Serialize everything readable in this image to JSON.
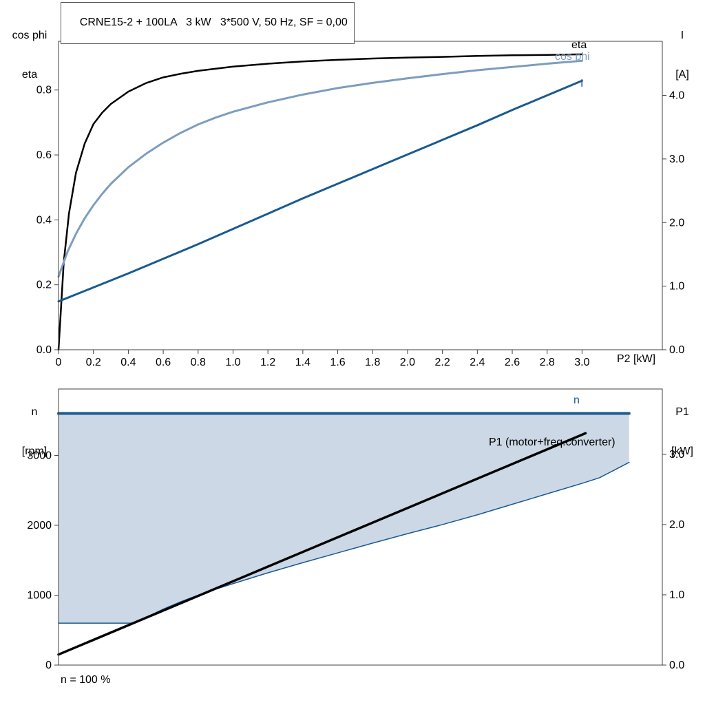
{
  "colors": {
    "black": "#000000",
    "dark_blue": "#1a5a8e",
    "light_blue": "#7d9dbe",
    "area_fill": "#ccd8e5",
    "frame": "#404040",
    "text": "#000000"
  },
  "labels": {
    "title": "CRNE15-2 + 100LA   3 kW   3*500 V, 50 Hz, SF = 0,00",
    "top_left_line1": "cos phi",
    "top_left_line2": "eta",
    "top_right_line1": "I",
    "top_right_line2": "[A]",
    "x_label_top": "P2 [kW]",
    "eta_curve": "eta",
    "cosphi_curve": "cos phi",
    "current_curve": "I",
    "bottom_left_line1": "n",
    "bottom_left_line2": "[rpm]",
    "bottom_right_line1": "P1",
    "bottom_right_line2": "[kW]",
    "n_curve": "n",
    "p1_curve": "P1 (motor+freq.converter)",
    "annotation": "n = 100 %"
  },
  "chart_data": [
    {
      "type": "line",
      "title": "CRNE15-2 + 100LA   3 kW   3*500 V, 50 Hz, SF = 0,00",
      "xlabel": "P2 [kW]",
      "y_left_label": "cos phi / eta",
      "y_right_label": "I [A]",
      "grid": false,
      "legend_position": "inline-right",
      "x_range": [
        0,
        3.46
      ],
      "y_left_range": [
        0,
        0.95
      ],
      "y_right_range": [
        0,
        4.85
      ],
      "x_ticks": {
        "values": [
          0,
          0.2,
          0.4,
          0.6,
          0.8,
          1.0,
          1.2,
          1.4,
          1.6,
          1.8,
          2.0,
          2.2,
          2.4,
          2.6,
          2.8,
          3.0
        ],
        "labels": [
          "0",
          "0.2",
          "0.4",
          "0.6",
          "0.8",
          "1.0",
          "1.2",
          "1.4",
          "1.6",
          "1.8",
          "2.0",
          "2.2",
          "2.4",
          "2.6",
          "2.8",
          "3.0"
        ]
      },
      "y_left_ticks": {
        "values": [
          0,
          0.2,
          0.4,
          0.6,
          0.8
        ],
        "labels": [
          "0.0",
          "0.2",
          "0.4",
          "0.6",
          "0.8"
        ]
      },
      "y_right_ticks": {
        "values": [
          0,
          1,
          2,
          3,
          4
        ],
        "labels": [
          "0.0",
          "1.0",
          "2.0",
          "3.0",
          "4.0"
        ]
      },
      "series": [
        {
          "name": "eta",
          "axis": "left",
          "color": "black",
          "width": 2.5,
          "points": [
            [
              0,
              0
            ],
            [
              0.03,
              0.27
            ],
            [
              0.06,
              0.42
            ],
            [
              0.1,
              0.545
            ],
            [
              0.15,
              0.635
            ],
            [
              0.2,
              0.695
            ],
            [
              0.25,
              0.73
            ],
            [
              0.3,
              0.757
            ],
            [
              0.4,
              0.795
            ],
            [
              0.5,
              0.821
            ],
            [
              0.6,
              0.839
            ],
            [
              0.7,
              0.85
            ],
            [
              0.8,
              0.859
            ],
            [
              1.0,
              0.872
            ],
            [
              1.2,
              0.881
            ],
            [
              1.4,
              0.888
            ],
            [
              1.6,
              0.893
            ],
            [
              1.8,
              0.897
            ],
            [
              2.0,
              0.9
            ],
            [
              2.2,
              0.902
            ],
            [
              2.4,
              0.905
            ],
            [
              2.6,
              0.907
            ],
            [
              2.8,
              0.908
            ],
            [
              3.0,
              0.91
            ]
          ]
        },
        {
          "name": "cos phi",
          "axis": "left",
          "color": "light_blue",
          "width": 3,
          "points": [
            [
              0,
              0.225
            ],
            [
              0.05,
              0.3
            ],
            [
              0.1,
              0.357
            ],
            [
              0.15,
              0.405
            ],
            [
              0.2,
              0.445
            ],
            [
              0.25,
              0.48
            ],
            [
              0.3,
              0.511
            ],
            [
              0.4,
              0.562
            ],
            [
              0.5,
              0.603
            ],
            [
              0.6,
              0.638
            ],
            [
              0.7,
              0.668
            ],
            [
              0.8,
              0.694
            ],
            [
              0.9,
              0.715
            ],
            [
              1.0,
              0.733
            ],
            [
              1.2,
              0.762
            ],
            [
              1.4,
              0.786
            ],
            [
              1.6,
              0.806
            ],
            [
              1.8,
              0.822
            ],
            [
              2.0,
              0.836
            ],
            [
              2.2,
              0.849
            ],
            [
              2.4,
              0.861
            ],
            [
              2.6,
              0.871
            ],
            [
              2.8,
              0.881
            ],
            [
              3.0,
              0.89
            ]
          ]
        },
        {
          "name": "I",
          "axis": "right",
          "color": "dark_blue",
          "width": 3,
          "points": [
            [
              0,
              0.76
            ],
            [
              0.2,
              0.98
            ],
            [
              0.4,
              1.2
            ],
            [
              0.6,
              1.43
            ],
            [
              0.8,
              1.66
            ],
            [
              1.0,
              1.9
            ],
            [
              1.2,
              2.14
            ],
            [
              1.4,
              2.38
            ],
            [
              1.6,
              2.61
            ],
            [
              1.8,
              2.84
            ],
            [
              2.0,
              3.07
            ],
            [
              2.2,
              3.3
            ],
            [
              2.4,
              3.53
            ],
            [
              2.6,
              3.77
            ],
            [
              2.8,
              4.0
            ],
            [
              3.0,
              4.23
            ]
          ]
        }
      ]
    },
    {
      "type": "line",
      "title": "",
      "xlabel": "",
      "y_left_label": "n [rpm]",
      "y_right_label": "P1 [kW]",
      "annotation": "n = 100 %",
      "grid": false,
      "x_range": [
        0,
        3.46
      ],
      "y_left_range": [
        0,
        3950
      ],
      "y_right_range": [
        0,
        3.93
      ],
      "x_ticks": {
        "values": [],
        "labels": []
      },
      "y_left_ticks": {
        "values": [
          0,
          1000,
          2000,
          3000
        ],
        "labels": [
          "0",
          "1000",
          "2000",
          "3000"
        ]
      },
      "y_right_ticks": {
        "values": [
          0,
          1,
          2,
          3
        ],
        "labels": [
          "0.0",
          "1.0",
          "2.0",
          "3.0"
        ]
      },
      "area": {
        "name": "speed-range-area",
        "fill": "area_fill",
        "upper_y": 3600,
        "upper_x1": 0,
        "upper_x2": 3.27,
        "lower": [
          [
            0,
            600
          ],
          [
            0.42,
            600
          ],
          [
            0.5,
            680
          ],
          [
            0.6,
            800
          ],
          [
            0.7,
            905
          ],
          [
            0.8,
            1000
          ],
          [
            0.9,
            1085
          ],
          [
            1.0,
            1165
          ],
          [
            1.2,
            1320
          ],
          [
            1.4,
            1465
          ],
          [
            1.6,
            1605
          ],
          [
            1.8,
            1745
          ],
          [
            2.0,
            1880
          ],
          [
            2.2,
            2010
          ],
          [
            2.4,
            2150
          ],
          [
            2.6,
            2300
          ],
          [
            2.8,
            2450
          ],
          [
            3.0,
            2600
          ],
          [
            3.1,
            2680
          ],
          [
            3.27,
            2900
          ]
        ]
      },
      "series": [
        {
          "name": "min speed",
          "axis": "left",
          "color": "dark_blue",
          "width": 1.5,
          "points": [
            [
              0,
              600
            ],
            [
              0.42,
              600
            ],
            [
              0.5,
              680
            ],
            [
              0.6,
              800
            ],
            [
              0.7,
              905
            ],
            [
              0.8,
              1000
            ],
            [
              0.9,
              1085
            ],
            [
              1.0,
              1165
            ],
            [
              1.2,
              1320
            ],
            [
              1.4,
              1465
            ],
            [
              1.6,
              1605
            ],
            [
              1.8,
              1745
            ],
            [
              2.0,
              1880
            ],
            [
              2.2,
              2010
            ],
            [
              2.4,
              2150
            ],
            [
              2.6,
              2300
            ],
            [
              2.8,
              2450
            ],
            [
              3.0,
              2600
            ],
            [
              3.1,
              2680
            ],
            [
              3.27,
              2900
            ]
          ]
        },
        {
          "name": "n",
          "axis": "left",
          "color": "dark_blue",
          "width": 4,
          "points": [
            [
              0,
              3600
            ],
            [
              3.27,
              3600
            ]
          ]
        },
        {
          "name": "P1 (motor+freq.converter)",
          "axis": "right",
          "color": "black",
          "width": 3.5,
          "points": [
            [
              0,
              0.15
            ],
            [
              3.02,
              3.3
            ]
          ]
        }
      ]
    }
  ]
}
